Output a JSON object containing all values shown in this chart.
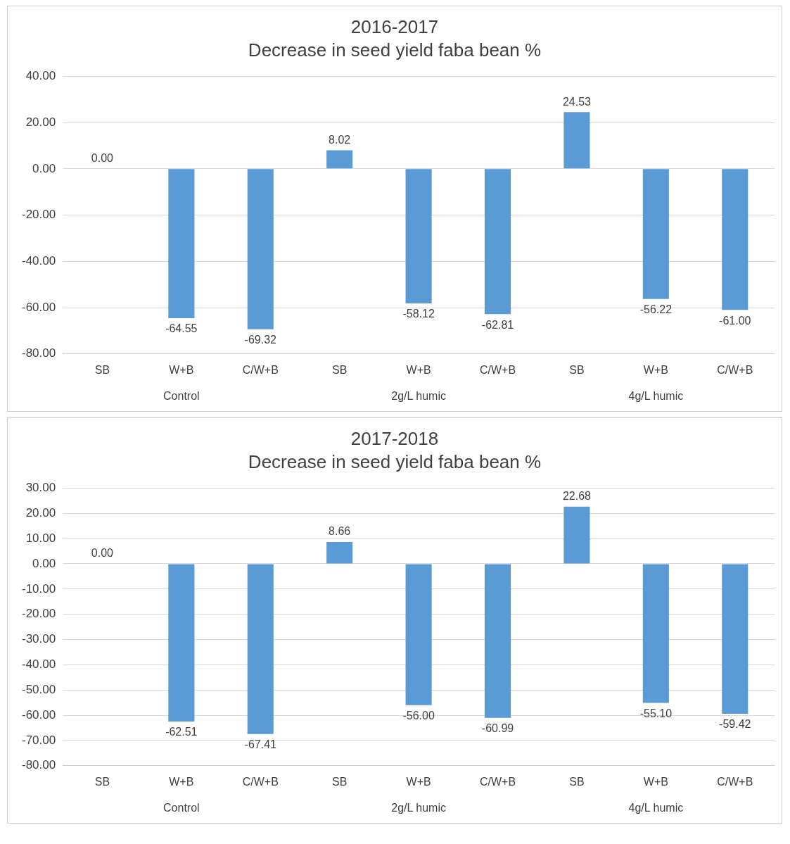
{
  "chart_data": [
    {
      "type": "bar",
      "title": "2016-2017",
      "subtitle": "Decrease in seed yield faba bean %",
      "categories": [
        "SB",
        "W+B",
        "C/W+B",
        "SB",
        "W+B",
        "C/W+B",
        "SB",
        "W+B",
        "C/W+B"
      ],
      "values": [
        0,
        -64.55,
        -69.32,
        8.02,
        -58.12,
        -62.81,
        24.53,
        -56.22,
        -61.0
      ],
      "value_labels": [
        "0.00",
        "-64.55",
        "-69.32",
        "8.02",
        "-58.12",
        "-62.81",
        "24.53",
        "-56.22",
        "-61.00"
      ],
      "color": "#5b9bd5",
      "ylim": [
        -80,
        40
      ],
      "yticks": [
        {
          "value": -80,
          "label": "-80.00"
        },
        {
          "value": -60,
          "label": "-60.00"
        },
        {
          "value": -40,
          "label": "-40.00"
        },
        {
          "value": -20,
          "label": "-20.00"
        },
        {
          "value": 0,
          "label": "0.00"
        },
        {
          "value": 20,
          "label": "20.00"
        },
        {
          "value": 40,
          "label": "40.00"
        }
      ],
      "grid": "y",
      "annotations": [
        "Control",
        "2g/L humic",
        "4g/L humic"
      ]
    },
    {
      "type": "bar",
      "title": "2017-2018",
      "subtitle": "Decrease in seed yield faba bean %",
      "categories": [
        "SB",
        "W+B",
        "C/W+B",
        "SB",
        "W+B",
        "C/W+B",
        "SB",
        "W+B",
        "C/W+B"
      ],
      "values": [
        0,
        -62.51,
        -67.41,
        8.66,
        -56.0,
        -60.99,
        22.68,
        -55.1,
        -59.42
      ],
      "value_labels": [
        "0.00",
        "-62.51",
        "-67.41",
        "8.66",
        "-56.00",
        "-60.99",
        "22.68",
        "-55.10",
        "-59.42"
      ],
      "color": "#5b9bd5",
      "ylim": [
        -80,
        30
      ],
      "yticks": [
        {
          "value": -80,
          "label": "-80.00"
        },
        {
          "value": -70,
          "label": "-70.00"
        },
        {
          "value": -60,
          "label": "-60.00"
        },
        {
          "value": -50,
          "label": "-50.00"
        },
        {
          "value": -40,
          "label": "-40.00"
        },
        {
          "value": -30,
          "label": "-30.00"
        },
        {
          "value": -20,
          "label": "-20.00"
        },
        {
          "value": -10,
          "label": "-10.00"
        },
        {
          "value": 0,
          "label": "0.00"
        },
        {
          "value": 10,
          "label": "10.00"
        },
        {
          "value": 20,
          "label": "20.00"
        },
        {
          "value": 30,
          "label": "30.00"
        }
      ],
      "grid": "y",
      "annotations": [
        "Control",
        "2g/L humic",
        "4g/L humic"
      ]
    }
  ]
}
